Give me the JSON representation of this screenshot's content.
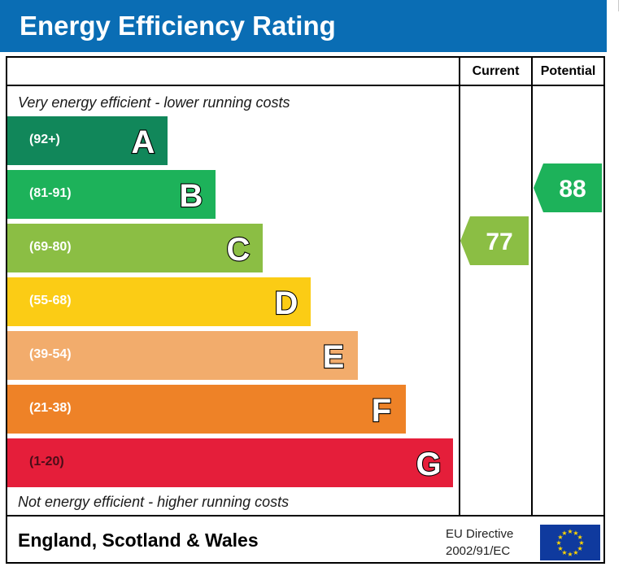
{
  "title": "Energy Efficiency Rating",
  "headers": {
    "current": "Current",
    "potential": "Potential"
  },
  "top_caption": "Very energy efficient - lower running costs",
  "bottom_caption": "Not energy efficient - higher running costs",
  "footer": {
    "country": "England, Scotland & Wales",
    "directive_line1": "EU Directive",
    "directive_line2": "2002/91/EC"
  },
  "colors": {
    "title_bg": "#0a6db4",
    "A": "#11875a",
    "B": "#1db25a",
    "C": "#8bbe44",
    "D": "#fbcc15",
    "E": "#f2ac6c",
    "F": "#ee8227",
    "G": "#e51e3a",
    "flag": "#0f3a9e",
    "star": "#ffd500"
  },
  "chart_data": {
    "type": "bar",
    "title": "Energy Efficiency Rating",
    "categories": [
      "A",
      "B",
      "C",
      "D",
      "E",
      "F",
      "G"
    ],
    "ranges": [
      "(92+)",
      "(81-91)",
      "(69-80)",
      "(55-68)",
      "(39-54)",
      "(21-38)",
      "(1-20)"
    ],
    "lower_bounds": [
      92,
      81,
      69,
      55,
      39,
      21,
      1
    ],
    "current": {
      "label": "Current",
      "value": "77",
      "band": "C"
    },
    "potential": {
      "label": "Potential",
      "value": "88",
      "band": "B"
    }
  }
}
